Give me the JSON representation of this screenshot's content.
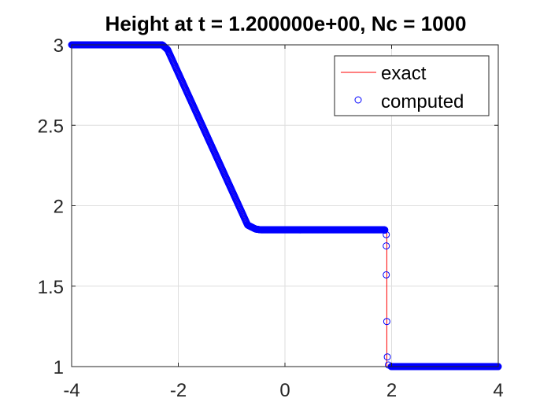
{
  "chart_data": {
    "type": "line",
    "title": "Height at t = 1.200000e+00, Nc = 1000",
    "xlabel": "",
    "ylabel": "",
    "xlim": [
      -4,
      4
    ],
    "ylim": [
      1,
      3
    ],
    "grid": true,
    "legend_placement": "top-right",
    "x_ticks": [
      -4,
      -2,
      0,
      2,
      4
    ],
    "x_tick_labels": [
      "-4",
      "-2",
      "0",
      "2",
      "4"
    ],
    "y_ticks": [
      1,
      1.5,
      2,
      2.5,
      3
    ],
    "y_tick_labels": [
      "1",
      "1.5",
      "2",
      "2.5",
      "3"
    ],
    "series": [
      {
        "name": "exact",
        "style": "line",
        "color": "#ff0000",
        "x": [
          -4,
          -2.23,
          -0.66,
          1.91,
          1.91,
          4
        ],
        "y": [
          3,
          3,
          1.85,
          1.85,
          1,
          1
        ]
      },
      {
        "name": "computed",
        "style": "markers",
        "color": "#0000ff",
        "x": [
          -4,
          -2.3,
          -2.2,
          -0.7,
          -0.55,
          -0.45,
          1.87,
          1.9,
          1.9,
          1.9,
          1.91,
          1.92,
          1.94,
          1.97,
          4
        ],
        "y": [
          3,
          3,
          2.97,
          1.88,
          1.855,
          1.85,
          1.85,
          1.82,
          1.75,
          1.57,
          1.28,
          1.06,
          1.01,
          1,
          1
        ]
      }
    ]
  }
}
